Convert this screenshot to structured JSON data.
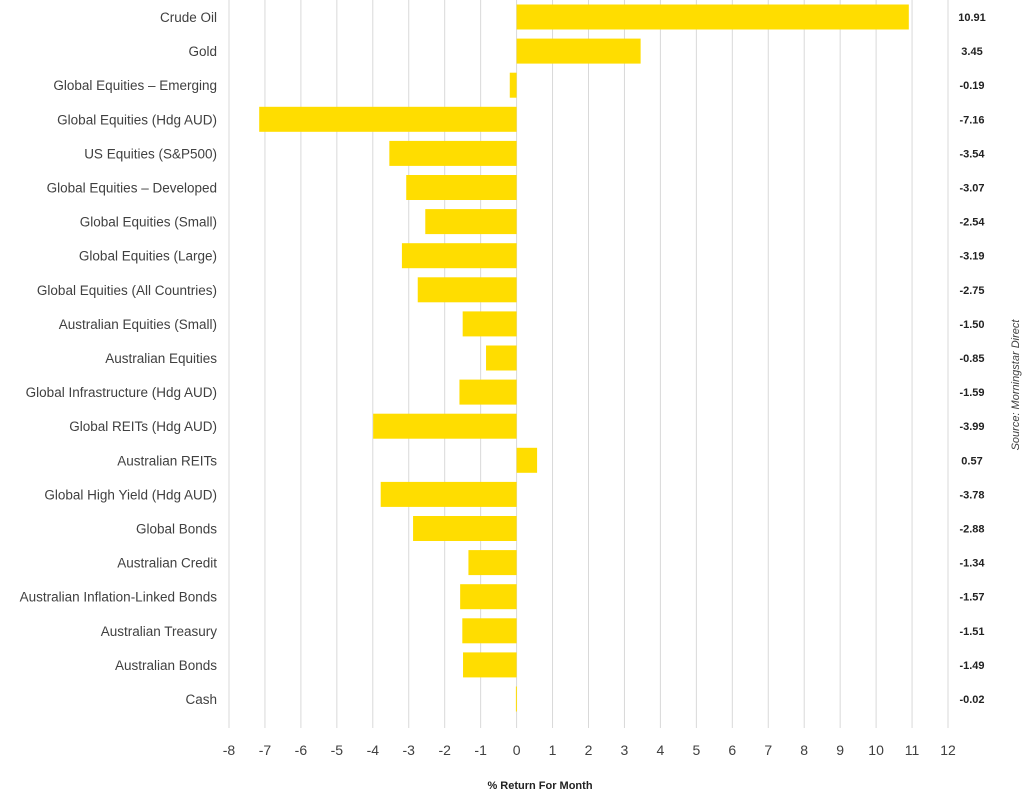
{
  "chart_data": {
    "type": "bar",
    "orientation": "horizontal",
    "title": "",
    "xlabel": "% Return For Month",
    "ylabel": "",
    "source": "Source: Morningstar Direct",
    "xlim": [
      -8,
      12
    ],
    "xticks": [
      -8,
      -7,
      -6,
      -5,
      -4,
      -3,
      -2,
      -1,
      0,
      1,
      2,
      3,
      4,
      5,
      6,
      7,
      8,
      9,
      10,
      11,
      12
    ],
    "grid": true,
    "bar_color": "#FFDD00",
    "categories": [
      "Crude Oil",
      "Gold",
      "Global Equities – Emerging",
      "Global Equities (Hdg AUD)",
      "US Equities (S&P500)",
      "Global Equities – Developed",
      "Global Equities (Small)",
      "Global Equities (Large)",
      "Global Equities (All Countries)",
      "Australian Equities (Small)",
      "Australian Equities",
      "Global Infrastructure (Hdg AUD)",
      "Global REITs (Hdg AUD)",
      "Australian REITs",
      "Global High Yield (Hdg AUD)",
      "Global Bonds",
      "Australian Credit",
      "Australian Inflation-Linked Bonds",
      "Australian Treasury",
      "Australian Bonds",
      "Cash"
    ],
    "values": [
      10.91,
      3.45,
      -0.19,
      -7.16,
      -3.54,
      -3.07,
      -2.54,
      -3.19,
      -2.75,
      -1.5,
      -0.85,
      -1.59,
      -3.99,
      0.57,
      -3.78,
      -2.88,
      -1.34,
      -1.57,
      -1.51,
      -1.49,
      -0.02
    ],
    "value_labels": [
      "10.91",
      "3.45",
      "-0.19",
      "-7.16",
      "-3.54",
      "-3.07",
      "-2.54",
      "-3.19",
      "-2.75",
      "-1.50",
      "-0.85",
      "-1.59",
      "-3.99",
      "0.57",
      "-3.78",
      "-2.88",
      "-1.34",
      "-1.57",
      "-1.51",
      "-1.49",
      "-0.02"
    ]
  }
}
